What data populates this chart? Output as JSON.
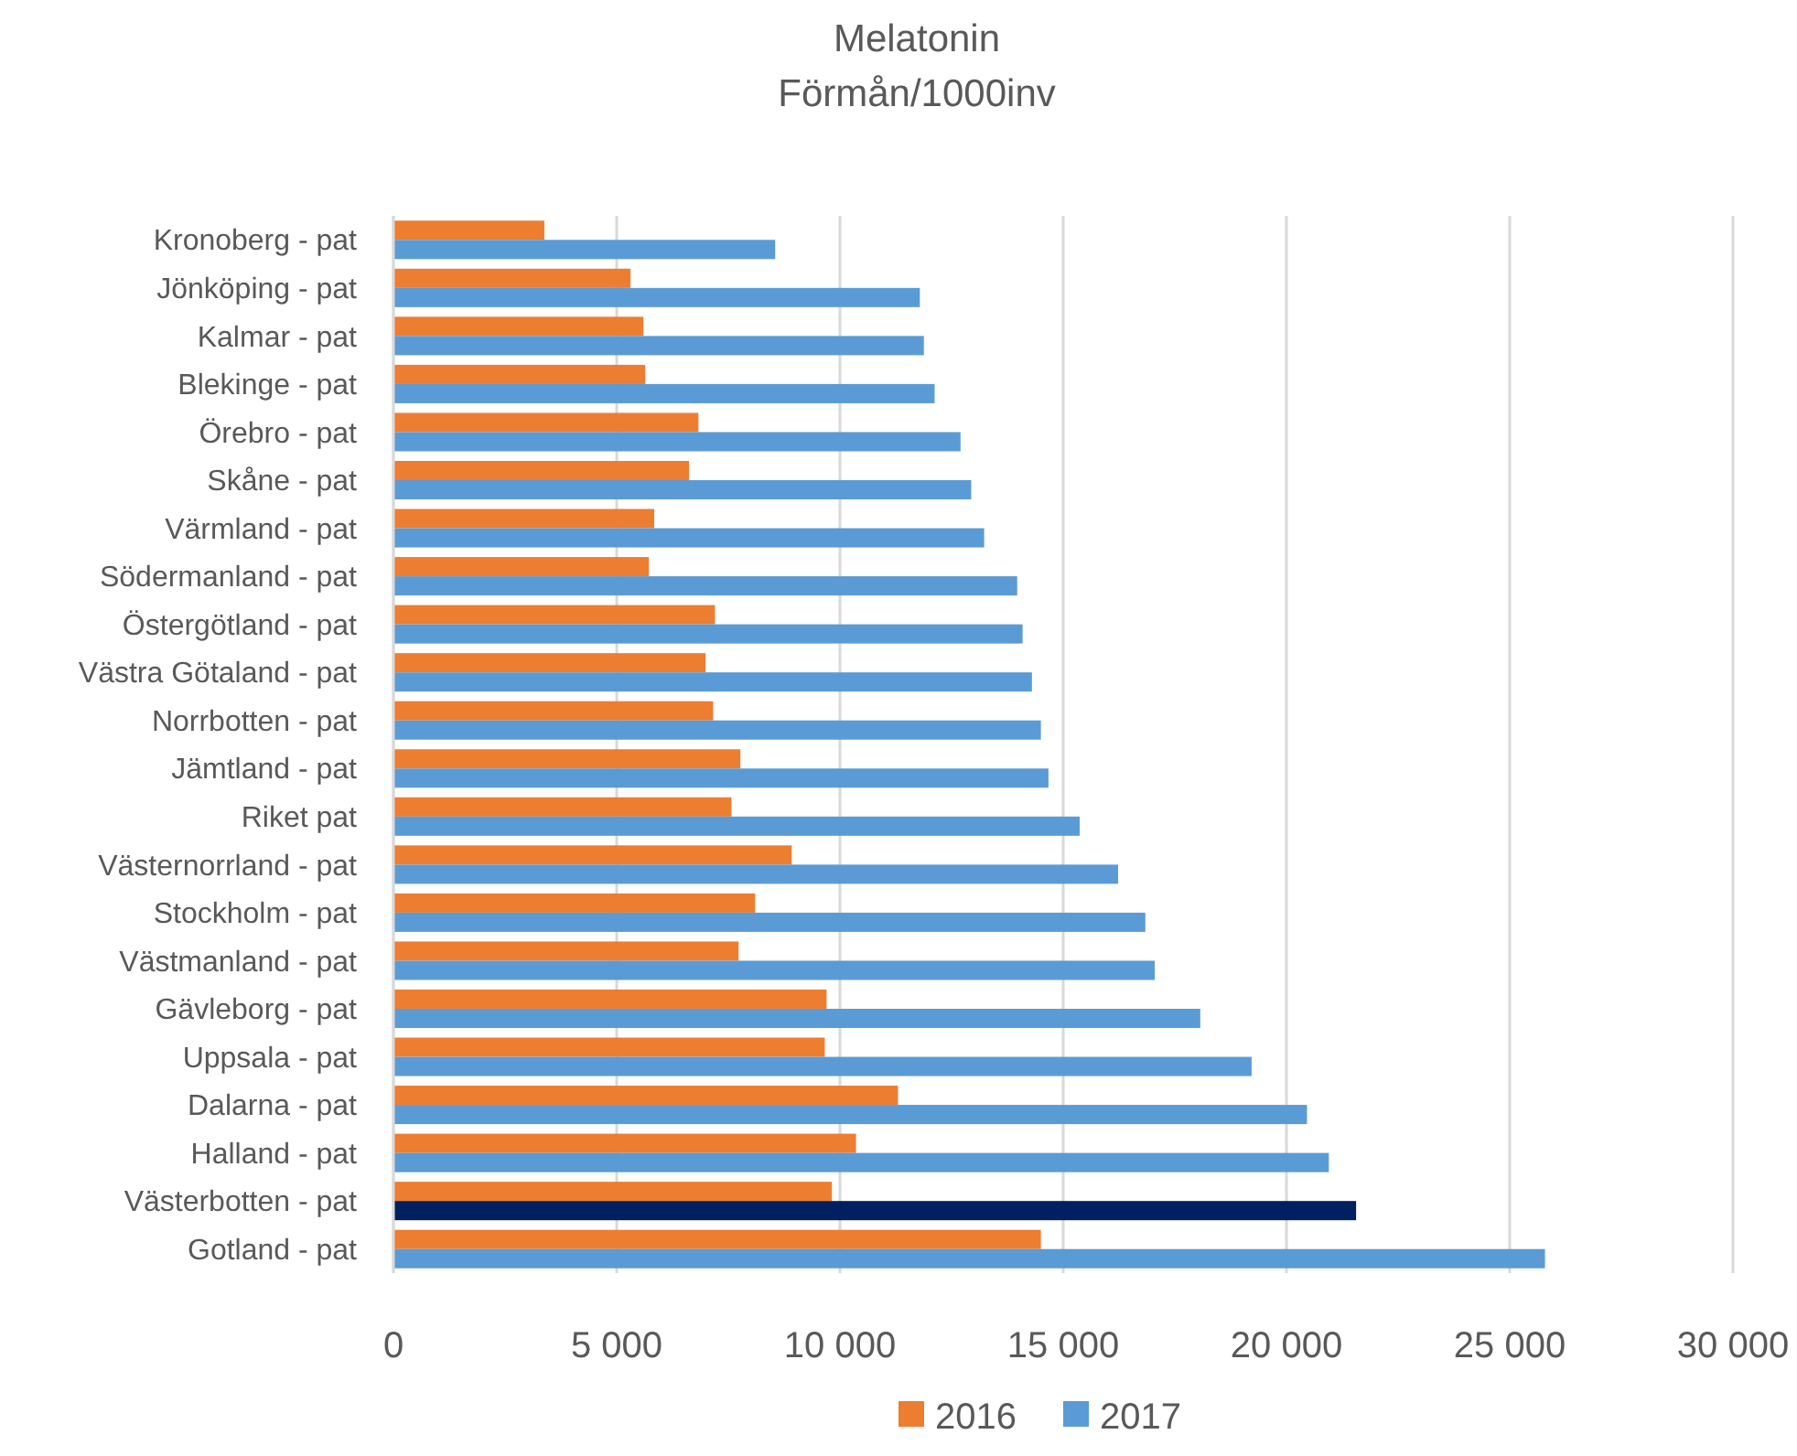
{
  "chart_data": {
    "type": "bar",
    "orientation": "horizontal",
    "title": "Melatonin",
    "subtitle": "Förmån/1000inv",
    "categories": [
      "Kronoberg - pat",
      "Jönköping - pat",
      "Kalmar - pat",
      "Blekinge - pat",
      "Örebro - pat",
      "Skåne - pat",
      "Värmland - pat",
      "Södermanland - pat",
      "Östergötland - pat",
      "Västra Götaland - pat",
      "Norrbotten - pat",
      "Jämtland - pat",
      "Riket pat",
      "Västernorrland - pat",
      "Stockholm - pat",
      "Västmanland - pat",
      "Gävleborg - pat",
      "Uppsala - pat",
      "Dalarna - pat",
      "Halland - pat",
      "Västerbotten - pat",
      "Gotland - pat"
    ],
    "series": [
      {
        "name": "2016",
        "color": "#ed7d31",
        "values": [
          3380,
          5310,
          5600,
          5640,
          6830,
          6620,
          5840,
          5720,
          7200,
          6990,
          7160,
          7770,
          7570,
          8920,
          8100,
          7730,
          9700,
          9660,
          11300,
          10360,
          9820,
          14500
        ]
      },
      {
        "name": "2017",
        "color": "#5b9bd5",
        "colors": [
          "#5b9bd5",
          "#5b9bd5",
          "#5b9bd5",
          "#5b9bd5",
          "#5b9bd5",
          "#5b9bd5",
          "#5b9bd5",
          "#5b9bd5",
          "#5b9bd5",
          "#5b9bd5",
          "#5b9bd5",
          "#5b9bd5",
          "#5b9bd5",
          "#5b9bd5",
          "#5b9bd5",
          "#5b9bd5",
          "#5b9bd5",
          "#5b9bd5",
          "#5b9bd5",
          "#5b9bd5",
          "#002060",
          "#5b9bd5"
        ],
        "values": [
          8550,
          11790,
          11880,
          12120,
          12700,
          12940,
          13230,
          13970,
          14090,
          14300,
          14500,
          14670,
          15370,
          16230,
          16840,
          17050,
          18070,
          19220,
          20460,
          20950,
          21560,
          25790
        ]
      }
    ],
    "xlim": [
      0,
      30000
    ],
    "xticks": [
      0,
      {
        "value": 5000,
        "label": "5 000"
      },
      {
        "value": 10000,
        "label": "10 000"
      },
      {
        "value": 15000,
        "label": "15 000"
      },
      {
        "value": 20000,
        "label": "20 000"
      },
      {
        "value": 25000,
        "label": "25 000"
      },
      {
        "value": 30000,
        "label": "30 000"
      }
    ],
    "grid": "x",
    "legend": "bottom"
  }
}
